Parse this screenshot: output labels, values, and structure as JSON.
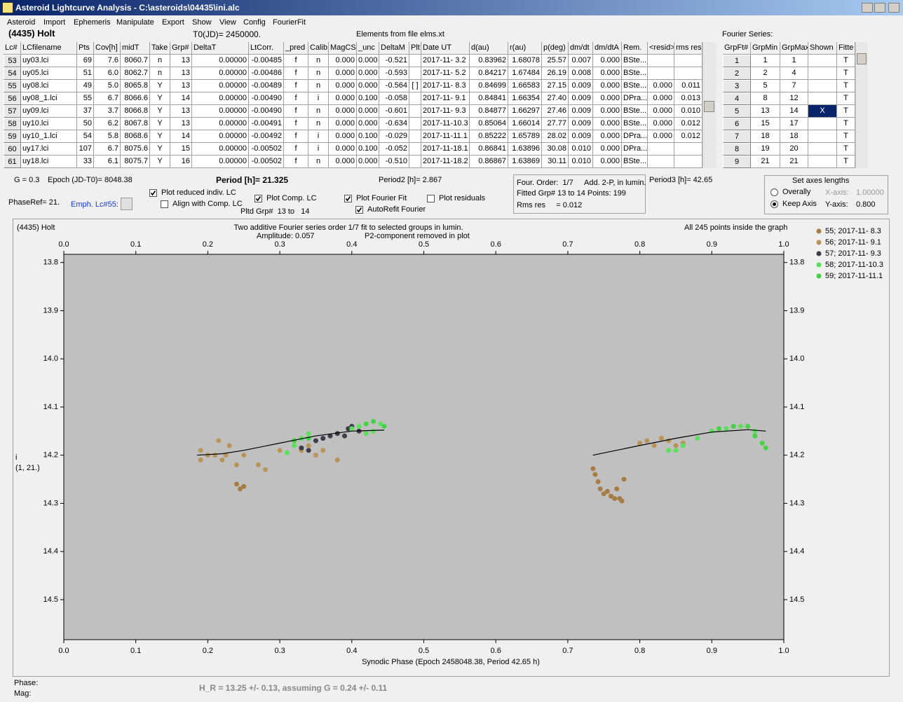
{
  "window": {
    "title": "Asteroid Lightcurve Analysis - C:\\asteroids\\04435\\ini.alc",
    "menu": [
      "Asteroid",
      "Import",
      "Ephemeris",
      "Manipulate",
      "Export",
      "Show",
      "View",
      "Config",
      "FourierFit"
    ]
  },
  "header": {
    "object": "(4435) Holt",
    "t0": "T0(JD)= 2450000.",
    "elements": "Elements from file elms.xt",
    "fourier_title": "Fourier Series:"
  },
  "table": {
    "columns": [
      "Lc#",
      "LCfilename",
      "Pts",
      "Cov[h]",
      "midT",
      "Take",
      "Grp#",
      "DeltaT",
      "LtCorr.",
      "_pred",
      "Calib",
      "MagCS",
      "_unc",
      "DeltaM",
      "Plt",
      "Date UT",
      "d(au)",
      "r(au)",
      "p(deg)",
      "dm/dt",
      "dm/dtA",
      "Rem.",
      "<resid>",
      "rms res"
    ],
    "rows": [
      [
        "53",
        "uy03.lci",
        "69",
        "7.6",
        "8060.7",
        "n",
        "13",
        "0.00000",
        "-0.00485",
        "f",
        "n",
        "0.000",
        "0.000",
        "-0.521",
        null,
        "2017-11- 3.2",
        "0.83962",
        "1.68078",
        "25.57",
        "0.007",
        "0.000",
        "BSte...",
        null,
        null
      ],
      [
        "54",
        "uy05.lci",
        "51",
        "6.0",
        "8062.7",
        "n",
        "13",
        "0.00000",
        "-0.00486",
        "f",
        "n",
        "0.000",
        "0.000",
        "-0.593",
        null,
        "2017-11- 5.2",
        "0.84217",
        "1.67484",
        "26.19",
        "0.008",
        "0.000",
        "BSte...",
        null,
        null
      ],
      [
        "55",
        "uy08.lci",
        "49",
        "5.0",
        "8065.8",
        "Y",
        "13",
        "0.00000",
        "-0.00489",
        "f",
        "n",
        "0.000",
        "0.000",
        "-0.564",
        "[ ]",
        "2017-11- 8.3",
        "0.84699",
        "1.66583",
        "27.15",
        "0.009",
        "0.000",
        "BSte...",
        "0.000",
        "0.011"
      ],
      [
        "56",
        "uy08_1.lci",
        "55",
        "6.7",
        "8066.6",
        "Y",
        "14",
        "0.00000",
        "-0.00490",
        "f",
        "i",
        "0.000",
        "0.100",
        "-0.058",
        null,
        "2017-11- 9.1",
        "0.84841",
        "1.66354",
        "27.40",
        "0.009",
        "0.000",
        "DPra...",
        "0.000",
        "0.013"
      ],
      [
        "57",
        "uy09.lci",
        "37",
        "3.7",
        "8066.8",
        "Y",
        "13",
        "0.00000",
        "-0.00490",
        "f",
        "n",
        "0.000",
        "0.000",
        "-0.601",
        null,
        "2017-11- 9.3",
        "0.84877",
        "1.66297",
        "27.46",
        "0.009",
        "0.000",
        "BSte...",
        "0.000",
        "0.010"
      ],
      [
        "58",
        "uy10.lci",
        "50",
        "6.2",
        "8067.8",
        "Y",
        "13",
        "0.00000",
        "-0.00491",
        "f",
        "n",
        "0.000",
        "0.000",
        "-0.634",
        null,
        "2017-11-10.3",
        "0.85064",
        "1.66014",
        "27.77",
        "0.009",
        "0.000",
        "BSte...",
        "0.000",
        "0.012"
      ],
      [
        "59",
        "uy10_1.lci",
        "54",
        "5.8",
        "8068.6",
        "Y",
        "14",
        "0.00000",
        "-0.00492",
        "f",
        "i",
        "0.000",
        "0.100",
        "-0.029",
        null,
        "2017-11-11.1",
        "0.85222",
        "1.65789",
        "28.02",
        "0.009",
        "0.000",
        "DPra...",
        "0.000",
        "0.012"
      ],
      [
        "60",
        "uy17.lci",
        "107",
        "6.7",
        "8075.6",
        "Y",
        "15",
        "0.00000",
        "-0.00502",
        "f",
        "i",
        "0.000",
        "0.100",
        "-0.052",
        null,
        "2017-11-18.1",
        "0.86841",
        "1.63896",
        "30.08",
        "0.010",
        "0.000",
        "DPra...",
        null,
        null
      ],
      [
        "61",
        "uy18.lci",
        "33",
        "6.1",
        "8075.7",
        "Y",
        "16",
        "0.00000",
        "-0.00502",
        "f",
        "n",
        "0.000",
        "0.000",
        "-0.510",
        null,
        "2017-11-18.2",
        "0.86867",
        "1.63869",
        "30.11",
        "0.010",
        "0.000",
        "BSte...",
        null,
        null
      ]
    ]
  },
  "fourier_table": {
    "columns": [
      "GrpFt#",
      "GrpMin",
      "GrpMax",
      "Shown",
      "Fitte"
    ],
    "rows": [
      [
        "1",
        "1",
        "1",
        null,
        "T"
      ],
      [
        "2",
        "2",
        "4",
        null,
        "T"
      ],
      [
        "3",
        "5",
        "7",
        null,
        "T"
      ],
      [
        "4",
        "8",
        "12",
        null,
        "T"
      ],
      [
        "5",
        "13",
        "14",
        "X",
        "T"
      ],
      [
        "6",
        "15",
        "17",
        null,
        "T"
      ],
      [
        "7",
        "18",
        "18",
        null,
        "T"
      ],
      [
        "8",
        "19",
        "20",
        null,
        "T"
      ],
      [
        "9",
        "21",
        "21",
        null,
        "T"
      ]
    ]
  },
  "controls": {
    "g": "G = 0.3",
    "epoch": "Epoch (JD-T0)= 8048.38",
    "period": "Period [h]= 21.325",
    "period2": "Period2 [h]= 2.867",
    "period3": "Period3 [h]= 42.65",
    "phase_ref": "PhaseRef= 21.",
    "emph": "Emph. Lc#55:",
    "pltd_grp": "Pltd Grp#  13 to   14",
    "checkboxes": [
      {
        "label": "Plot reduced indiv. LC",
        "checked": true
      },
      {
        "label": "Align with Comp. LC",
        "checked": false
      },
      {
        "label": "Plot Comp. LC",
        "checked": true
      },
      {
        "label": "Plot Fourier Fit",
        "checked": true
      },
      {
        "label": "AutoRefit Fourier",
        "checked": true
      },
      {
        "label": "Plot residuals",
        "checked": false
      }
    ]
  },
  "fourier_box": [
    "Four. Order:  1/7",
    "Add. 2-P, in lumin.",
    "Fitted Grp# 13 to 14 Points: 199",
    "Rms res     = 0.012"
  ],
  "axes_box": {
    "title": "Set axes lengths",
    "options": [
      {
        "label": "Overally",
        "selected": false
      },
      {
        "label": "Keep Axis",
        "selected": true
      }
    ],
    "x_label": "X-axis:",
    "x_value": "1.00000",
    "y_label": "Y-axis:",
    "y_value": "0.800"
  },
  "status": {
    "phase": "Phase:",
    "mag": "Mag:",
    "h_r": "H_R = 13.25 +/- 0.13, assuming G = 0.24 +/- 0.11"
  },
  "chart_data": {
    "type": "scatter",
    "object_label": "(4435) Holt",
    "title": "Two additive Fourier series order 1/7 fit to selected groups in lumin.",
    "annotations": [
      "Amplitude: 0.057",
      "P2-component removed in plot",
      "All 245 points inside the graph"
    ],
    "ylabel": "i",
    "ylabel2": "(1, 21.)",
    "xlabel": "Synodic Phase (Epoch 2458048.38, Period 42.65 h)",
    "xlim": [
      0,
      1
    ],
    "ylim": [
      13.783,
      14.583
    ],
    "y_inverted": true,
    "legend": "upper right",
    "xticks": [
      {
        "value": 0,
        "label": "0.0"
      },
      0.1,
      0.2,
      0.3,
      0.4,
      0.5,
      0.6,
      0.7,
      0.8,
      0.9,
      {
        "value": 1,
        "label": "1.0"
      }
    ],
    "yticks": [
      13.8,
      13.9,
      {
        "value": 14,
        "label": "14.0"
      },
      14.1,
      14.2,
      14.3,
      14.4,
      14.5
    ],
    "series": [
      {
        "name": "55; 2017-11- 8.3",
        "color": "#a67c45",
        "x": [
          0.735,
          0.738,
          0.742,
          0.745,
          0.75,
          0.755,
          0.76,
          0.765,
          0.768,
          0.772,
          0.775,
          0.778,
          0.24,
          0.245,
          0.25
        ],
        "values": [
          14.228,
          14.24,
          14.255,
          14.27,
          14.28,
          14.275,
          14.285,
          14.29,
          14.27,
          14.29,
          14.295,
          14.25,
          14.26,
          14.27,
          14.265
        ]
      },
      {
        "name": "56; 2017-11- 9.1",
        "color": "#b89458",
        "x": [
          0.19,
          0.19,
          0.2,
          0.21,
          0.215,
          0.22,
          0.225,
          0.23,
          0.24,
          0.25,
          0.27,
          0.28,
          0.3,
          0.32,
          0.33,
          0.34,
          0.35,
          0.36,
          0.38,
          0.8,
          0.81,
          0.82,
          0.83,
          0.84,
          0.85,
          0.86
        ],
        "values": [
          14.19,
          14.21,
          14.2,
          14.2,
          14.17,
          14.21,
          14.2,
          14.18,
          14.22,
          14.2,
          14.22,
          14.23,
          14.19,
          14.17,
          14.19,
          14.18,
          14.2,
          14.19,
          14.21,
          14.175,
          14.17,
          14.18,
          14.165,
          14.17,
          14.18,
          14.175
        ]
      },
      {
        "name": "57; 2017-11- 9.3",
        "color": "#3c3c4a",
        "x": [
          0.33,
          0.34,
          0.35,
          0.36,
          0.37,
          0.38,
          0.39,
          0.395,
          0.4,
          0.41
        ],
        "values": [
          14.185,
          14.19,
          14.17,
          14.165,
          14.16,
          14.155,
          14.16,
          14.145,
          14.14,
          14.15
        ]
      },
      {
        "name": "58; 2017-11-10.3",
        "color": "#5be05b",
        "x": [
          0.31,
          0.32,
          0.33,
          0.34,
          0.4,
          0.41,
          0.42,
          0.43,
          0.44,
          0.84,
          0.85,
          0.86,
          0.88,
          0.9,
          0.92,
          0.94,
          0.96
        ],
        "values": [
          14.195,
          14.18,
          14.165,
          14.155,
          14.145,
          14.14,
          14.155,
          14.15,
          14.135,
          14.19,
          14.19,
          14.18,
          14.165,
          14.15,
          14.145,
          14.14,
          14.15
        ]
      },
      {
        "name": "59; 2017-11-11.1",
        "color": "#44d344",
        "x": [
          0.32,
          0.34,
          0.42,
          0.43,
          0.445,
          0.91,
          0.93,
          0.95,
          0.96,
          0.97,
          0.975
        ],
        "values": [
          14.17,
          14.165,
          14.135,
          14.13,
          14.14,
          14.145,
          14.14,
          14.14,
          14.16,
          14.175,
          14.185
        ]
      }
    ],
    "fit": {
      "color": "#000000",
      "x": [
        0.185,
        0.22,
        0.25,
        0.3,
        0.35,
        0.4,
        0.445,
        null,
        0.735,
        0.8,
        0.85,
        0.9,
        0.95,
        0.975
      ],
      "y": [
        14.2,
        14.197,
        14.19,
        14.175,
        14.16,
        14.15,
        14.148,
        null,
        14.2,
        14.18,
        14.165,
        14.152,
        14.147,
        14.15
      ]
    }
  }
}
